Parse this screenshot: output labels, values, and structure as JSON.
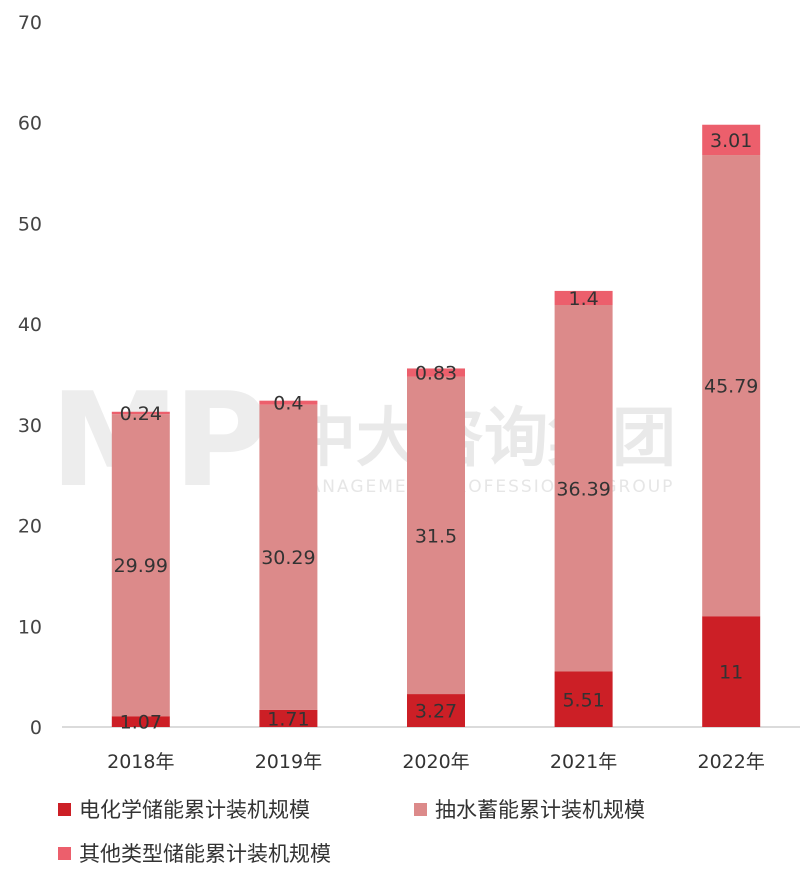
{
  "watermark": {
    "logo": "MP",
    "name": "中大咨询集团",
    "subtitle": "MANAGEMENT PROFESSIONAL GROUP"
  },
  "chart_data": {
    "type": "bar",
    "stacked": true,
    "categories": [
      "2018年",
      "2019年",
      "2020年",
      "2021年",
      "2022年"
    ],
    "series": [
      {
        "name": "电化学储能累计装机规模",
        "color": "#cc1f26",
        "values": [
          1.07,
          1.71,
          3.27,
          5.51,
          11
        ]
      },
      {
        "name": "抽水蓄能累计装机规模",
        "color": "#dc8a8a",
        "values": [
          29.99,
          30.29,
          31.5,
          36.39,
          45.79
        ]
      },
      {
        "name": "其他类型储能累计装机规模",
        "color": "#ec5f6c",
        "values": [
          0.24,
          0.4,
          0.83,
          1.4,
          3.01
        ]
      }
    ],
    "data_labels": [
      [
        "1.07",
        "1.71",
        "3.27",
        "5.51",
        "11"
      ],
      [
        "29.99",
        "30.29",
        "31.5",
        "36.39",
        "45.79"
      ],
      [
        "0.24",
        "0.4",
        "0.83",
        "1.4",
        "3.01"
      ]
    ],
    "ylim": [
      0,
      70
    ],
    "yticks": [
      0,
      10,
      20,
      30,
      40,
      50,
      60,
      70
    ],
    "grid": false,
    "legend_position": "bottom"
  }
}
